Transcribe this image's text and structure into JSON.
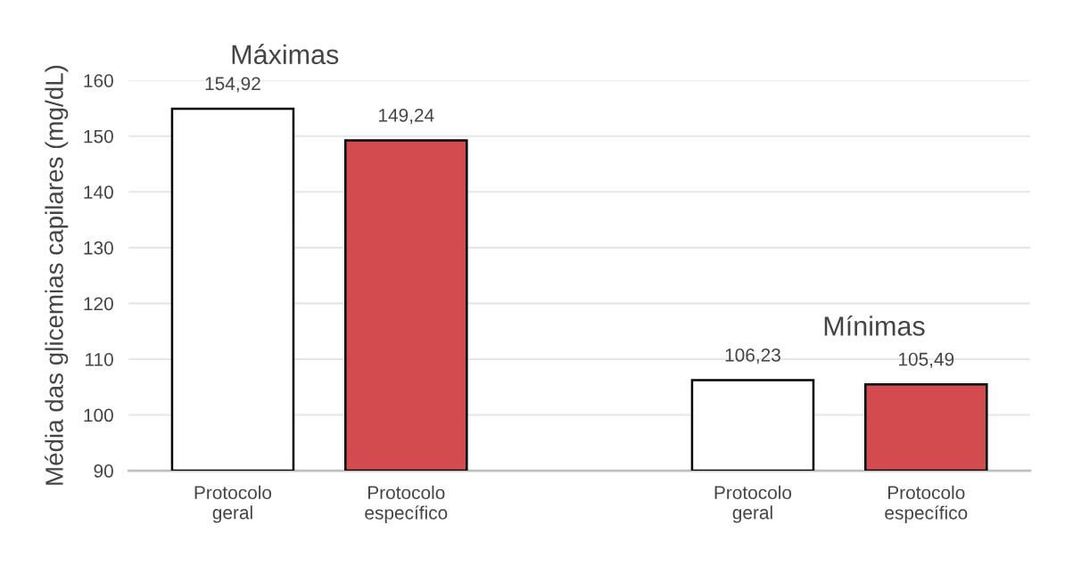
{
  "chart_data": {
    "type": "bar",
    "ylabel": "Média das glicemias capilares (mg/dL)",
    "categories": [
      "Protocolo\ngeral",
      "Protocolo\nespecífico",
      null,
      "Protocolo\ngeral",
      "Protocolo\nespecífico"
    ],
    "values": [
      154.92,
      149.24,
      null,
      106.23,
      105.49
    ],
    "value_labels": [
      "154,92",
      "149,24",
      null,
      "106,23",
      "105,49"
    ],
    "colors": [
      "#ffffff",
      "#d34b4e",
      "#ffffff",
      "#ffffff",
      "#d34b4e"
    ],
    "annotations": [
      "Máximas",
      "Mínimas"
    ],
    "ylim": [
      90,
      160
    ],
    "yticks": [
      90,
      100,
      110,
      120,
      130,
      140,
      150,
      160
    ],
    "grid": "y"
  }
}
